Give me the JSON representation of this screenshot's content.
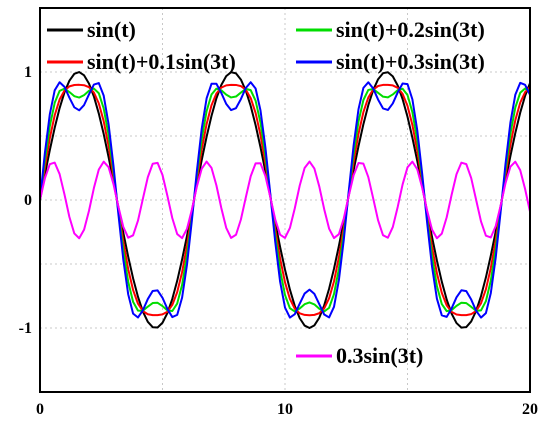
{
  "chart_data": {
    "type": "line",
    "xlim": [
      0,
      20
    ],
    "ylim": [
      -1.5,
      1.5
    ],
    "x_ticks": [
      0,
      10,
      20
    ],
    "y_ticks": [
      1,
      0,
      -1
    ],
    "x_tick_labels": [
      "0",
      "10",
      "20"
    ],
    "y_tick_labels": [
      "1",
      "0",
      "-1"
    ],
    "grid": true,
    "title": "",
    "xlabel": "",
    "ylabel": "",
    "sample_step": 0.2,
    "series": [
      {
        "name": "sin(t)",
        "color": "#000000",
        "a": 1,
        "b": 0,
        "legend": "top-left"
      },
      {
        "name": "sin(t)+0.1sin(3t)",
        "color": "#ff0000",
        "a": 1,
        "b": 0.1,
        "legend": "top-left"
      },
      {
        "name": "sin(t)+0.2sin(3t)",
        "color": "#00dd00",
        "a": 1,
        "b": 0.2,
        "legend": "top-right"
      },
      {
        "name": "sin(t)+0.3sin(3t)",
        "color": "#0000ff",
        "a": 1,
        "b": 0.3,
        "legend": "top-right"
      },
      {
        "name": "0.3sin(3t)",
        "color": "#ff00ff",
        "a": 0,
        "b": 0.3,
        "legend": "bottom-right"
      }
    ]
  }
}
